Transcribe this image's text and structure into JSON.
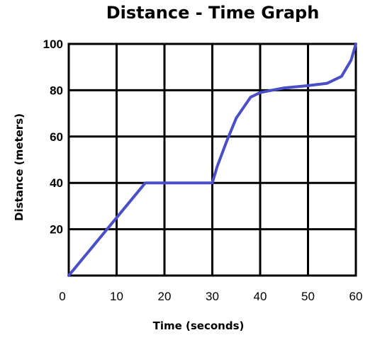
{
  "chart_data": {
    "type": "line",
    "title": "Distance - Time Graph",
    "xlabel": "Time (seconds)",
    "ylabel": "Distance (meters)",
    "xlim": [
      0,
      60
    ],
    "ylim": [
      0,
      100
    ],
    "xticks": [
      "0",
      "10",
      "20",
      "30",
      "40",
      "50",
      "60"
    ],
    "yticks": [
      "20",
      "40",
      "60",
      "80",
      "100"
    ],
    "grid": true,
    "series": [
      {
        "color": "#4a4fc8",
        "x": [
          0,
          10,
          16,
          30,
          31,
          33,
          35,
          38,
          40,
          45,
          50,
          54,
          57,
          59,
          60
        ],
        "y": [
          0,
          25,
          40,
          40,
          47,
          58,
          68,
          77,
          79,
          81,
          82,
          83,
          86,
          93,
          100
        ]
      }
    ]
  }
}
